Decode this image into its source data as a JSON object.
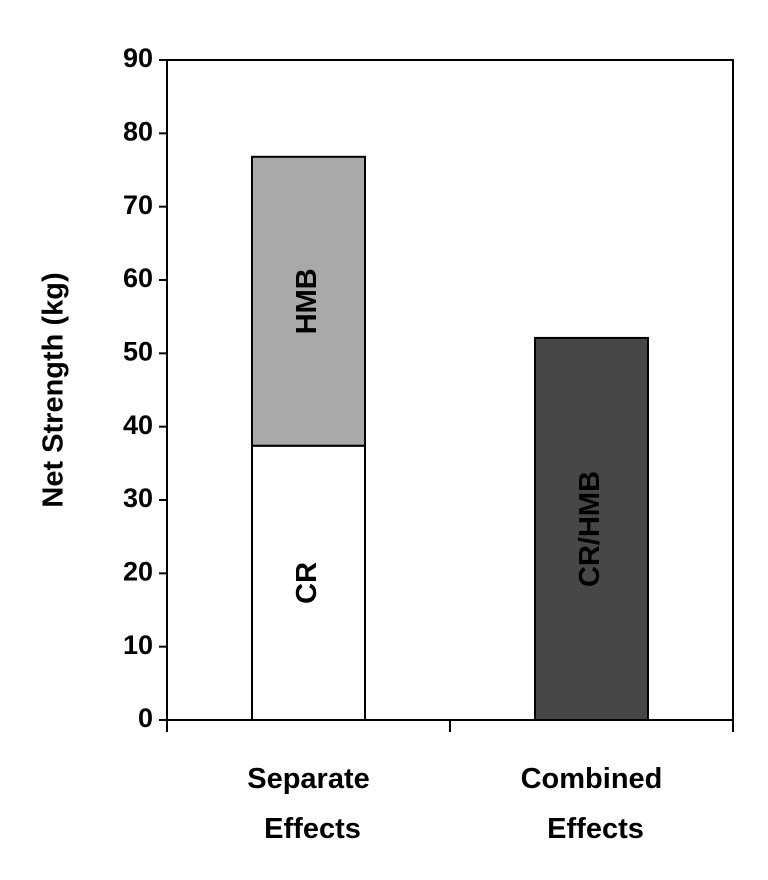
{
  "chart_data": {
    "type": "stacked_bar",
    "y_label": "Net Strength (kg)",
    "categories": [
      "Separate Effects",
      "Combined Effects"
    ],
    "series": [
      {
        "name": "CR",
        "color": "#ffffff",
        "values": [
          37.4,
          null
        ]
      },
      {
        "name": "HMB",
        "color": "#a9a9a9",
        "values": [
          39.4,
          null
        ]
      },
      {
        "name": "CR/HMB",
        "color": "#474747",
        "values": [
          null,
          52.1
        ]
      }
    ],
    "ylim": [
      0,
      90
    ],
    "yticks": [
      0,
      10,
      20,
      30,
      40,
      50,
      60,
      70,
      80,
      90
    ]
  }
}
